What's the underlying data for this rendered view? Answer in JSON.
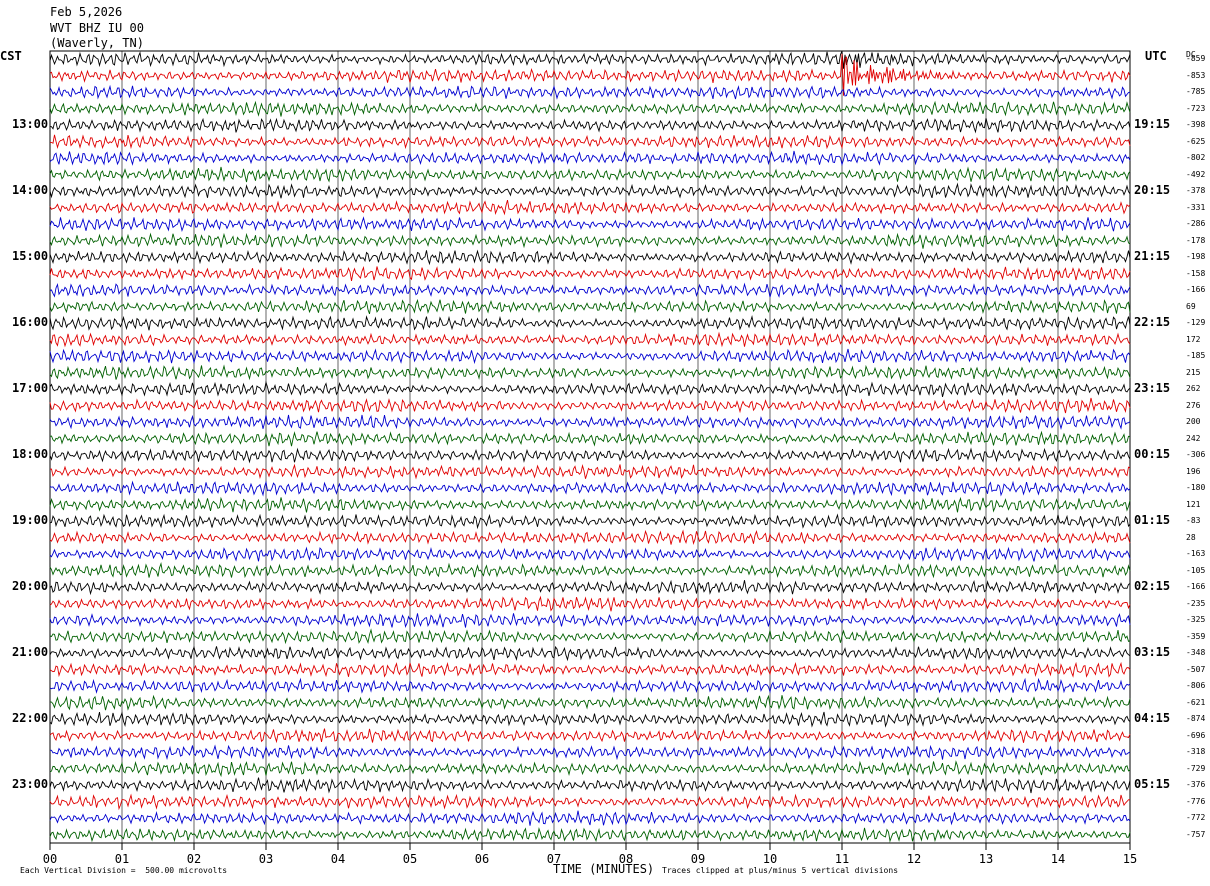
{
  "header": {
    "date": "Feb 5,2026",
    "station": "WVT BHZ IU 00",
    "location": "(Waverly, TN)"
  },
  "left_tz": "CST",
  "right_tz": "UTC",
  "dc_label": "DC",
  "footer": {
    "scale": "Each Vertical Division =  500.00 microvolts",
    "clip": "Traces clipped at plus/minus 5 vertical divisions"
  },
  "colors": {
    "trace": [
      "#000000",
      "#e00000",
      "#0000d0",
      "#006000"
    ],
    "grid": "#000000"
  },
  "chart_data": {
    "type": "line",
    "title": "",
    "xlabel": "TIME (MINUTES)",
    "x_ticks": [
      "00",
      "01",
      "02",
      "03",
      "04",
      "05",
      "06",
      "07",
      "08",
      "09",
      "10",
      "11",
      "12",
      "13",
      "14",
      "15"
    ],
    "xlim": [
      0,
      15
    ],
    "left_hours": [
      "13:00",
      "14:00",
      "15:00",
      "16:00",
      "17:00",
      "18:00",
      "19:00",
      "20:00",
      "21:00",
      "22:00",
      "23:00"
    ],
    "right_hours": [
      "19:15",
      "20:15",
      "21:15",
      "22:15",
      "23:15",
      "00:15",
      "01:15",
      "02:15",
      "03:15",
      "04:15",
      "05:15"
    ],
    "first_labeled_trace": 4,
    "traces_per_hour": 4,
    "trace_count": 48,
    "dc_offsets": [
      "-859",
      "-853",
      "-785",
      "-723",
      "-398",
      "-625",
      "-802",
      "-492",
      "-378",
      "-331",
      "-286",
      "-178",
      "-198",
      "-158",
      "-166",
      "69",
      "-129",
      "172",
      "-185",
      "215",
      "262",
      "276",
      "200",
      "242",
      "-306",
      "196",
      "-180",
      "121",
      "-83",
      "28",
      "-163",
      "-105",
      "-166",
      "-235",
      "-325",
      "-359",
      "-348",
      "-507",
      "-806",
      "-621",
      "-874",
      "-696",
      "-318",
      "-729",
      "-376",
      "-776",
      "-772",
      "-757"
    ],
    "event": {
      "minute": 11.0,
      "trace_index": 1,
      "note": "Traces clipped at plus/minus 5 vertical divisions"
    }
  }
}
